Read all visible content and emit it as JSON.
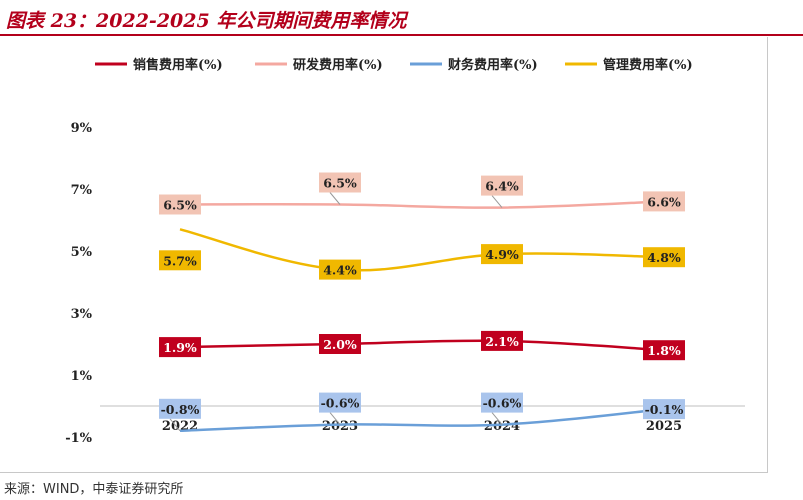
{
  "title": "图表 23：2022-2025 年公司期间费用率情况",
  "source": "来源：WIND，中泰证券研究所",
  "colors": {
    "title": "#b3001b",
    "sales": "#c0001e",
    "rnd": "#f4a8a0",
    "finance": "#6a9fd8",
    "admin": "#f0b800"
  },
  "chart_data": {
    "type": "line",
    "categories": [
      "2022",
      "2023",
      "2024",
      "2025"
    ],
    "ylim": [
      -1,
      9
    ],
    "yticks": [
      "-1%",
      "1%",
      "3%",
      "5%",
      "7%",
      "9%"
    ],
    "ytick_values": [
      -1,
      1,
      3,
      5,
      7,
      9
    ],
    "grid": false,
    "legend_position": "top",
    "series": [
      {
        "key": "sales",
        "name": "销售费用率(%)",
        "values": [
          1.9,
          2.0,
          2.1,
          1.8
        ],
        "labels": [
          "1.9%",
          "2.0%",
          "2.1%",
          "1.8%"
        ],
        "label_style": "dark",
        "label_placement": [
          "on",
          "on",
          "on",
          "on"
        ]
      },
      {
        "key": "rnd",
        "name": "研发费用率(%)",
        "values": [
          6.5,
          6.5,
          6.4,
          6.6
        ],
        "labels": [
          "6.5%",
          "6.5%",
          "6.4%",
          "6.6%"
        ],
        "label_style": "light",
        "label_placement": [
          "on",
          "above",
          "above",
          "on"
        ]
      },
      {
        "key": "finance",
        "name": "财务费用率(%)",
        "values": [
          -0.8,
          -0.6,
          -0.6,
          -0.1
        ],
        "labels": [
          "-0.8%",
          "-0.6%",
          "-0.6%",
          "-0.1%"
        ],
        "label_style": "light",
        "label_placement": [
          "above",
          "above",
          "above",
          "on"
        ]
      },
      {
        "key": "admin",
        "name": "管理费用率(%)",
        "values": [
          5.7,
          4.4,
          4.9,
          4.8
        ],
        "labels": [
          "5.7%",
          "4.4%",
          "4.9%",
          "4.8%"
        ],
        "label_style": "gold",
        "label_placement": [
          "below",
          "on",
          "on",
          "on"
        ]
      }
    ]
  }
}
